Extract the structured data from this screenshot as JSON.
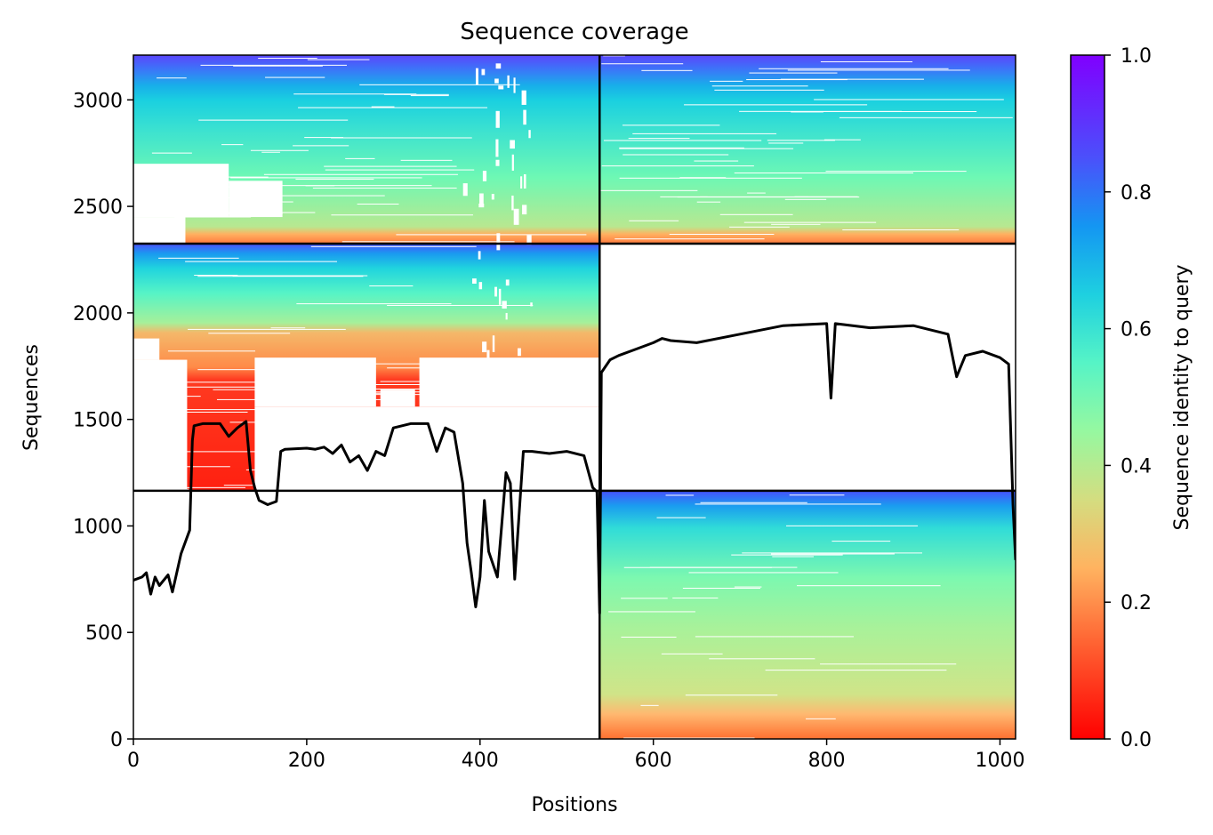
{
  "chart_data": {
    "type": "heatmap",
    "title": "Sequence coverage",
    "xlabel": "Positions",
    "ylabel": "Sequences",
    "xlim": [
      0,
      1018
    ],
    "ylim": [
      0,
      3210
    ],
    "xticks": [
      0,
      200,
      400,
      600,
      800,
      1000
    ],
    "yticks": [
      0,
      500,
      1000,
      1500,
      2000,
      2500,
      3000
    ],
    "colorbar": {
      "label": "Sequence identity to query",
      "range": [
        0.0,
        1.0
      ],
      "ticks": [
        "0.0",
        "0.2",
        "0.4",
        "0.6",
        "0.8",
        "1.0"
      ],
      "colormap": "rainbow_r"
    },
    "chain_boundary_position": 538,
    "block_boundaries_sequences": [
      1165,
      2325
    ],
    "blocks": [
      {
        "x_range": [
          0,
          538
        ],
        "y_range": [
          2325,
          3210
        ],
        "identity_range": [
          0.15,
          0.92
        ]
      },
      {
        "x_range": [
          538,
          1018
        ],
        "y_range": [
          2325,
          3210
        ],
        "identity_range": [
          0.2,
          0.92
        ]
      },
      {
        "x_range": [
          0,
          538
        ],
        "y_range": [
          1165,
          2325
        ],
        "identity_range": [
          0.0,
          0.92
        ]
      },
      {
        "x_range": [
          538,
          1018
        ],
        "y_range": [
          0,
          1165
        ],
        "identity_range": [
          0.2,
          0.92
        ]
      }
    ],
    "coverage_line": {
      "color": "#000000",
      "x": [
        0,
        10,
        15,
        20,
        25,
        30,
        40,
        45,
        55,
        65,
        68,
        70,
        80,
        100,
        110,
        120,
        130,
        135,
        140,
        145,
        150,
        155,
        165,
        170,
        175,
        200,
        210,
        220,
        230,
        240,
        250,
        260,
        270,
        280,
        290,
        300,
        320,
        340,
        350,
        360,
        370,
        380,
        385,
        390,
        395,
        400,
        405,
        410,
        420,
        425,
        430,
        435,
        440,
        450,
        460,
        480,
        500,
        520,
        530,
        535,
        538,
        540,
        550,
        560,
        580,
        600,
        610,
        620,
        650,
        700,
        750,
        800,
        805,
        810,
        850,
        900,
        940,
        950,
        960,
        980,
        1000,
        1010,
        1015,
        1018
      ],
      "y": [
        745,
        760,
        780,
        680,
        760,
        720,
        770,
        690,
        870,
        980,
        1400,
        1470,
        1480,
        1480,
        1420,
        1460,
        1490,
        1260,
        1180,
        1120,
        1110,
        1100,
        1115,
        1350,
        1360,
        1365,
        1360,
        1370,
        1340,
        1380,
        1300,
        1330,
        1260,
        1350,
        1330,
        1460,
        1480,
        1480,
        1350,
        1460,
        1440,
        1200,
        920,
        780,
        620,
        760,
        1120,
        880,
        760,
        1000,
        1250,
        1200,
        750,
        1350,
        1350,
        1340,
        1350,
        1330,
        1180,
        1160,
        590,
        1720,
        1780,
        1800,
        1830,
        1860,
        1880,
        1870,
        1860,
        1900,
        1940,
        1950,
        1600,
        1950,
        1930,
        1940,
        1900,
        1700,
        1800,
        1820,
        1790,
        1760,
        1100,
        840
      ]
    }
  }
}
